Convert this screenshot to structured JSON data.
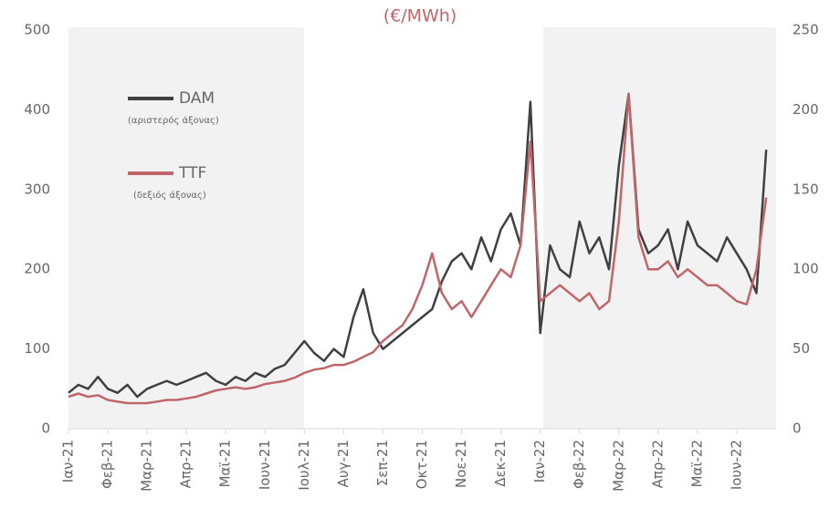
{
  "chart_data": {
    "type": "line",
    "title": "(€/MWh)",
    "categories": [
      "Ιαν-21",
      null,
      null,
      null,
      "Φεβ-21",
      null,
      null,
      null,
      "Μαρ-21",
      null,
      null,
      null,
      "Απρ-21",
      null,
      null,
      null,
      "Μαϊ-21",
      null,
      null,
      null,
      "Ιουν-21",
      null,
      null,
      null,
      "Ιουλ-21",
      null,
      null,
      null,
      "Αυγ-21",
      null,
      null,
      null,
      "Σεπ-21",
      null,
      null,
      null,
      "Οκτ-21",
      null,
      null,
      null,
      "Νοε-21",
      null,
      null,
      null,
      "Δεκ-21",
      null,
      null,
      null,
      "Ιαν-22",
      null,
      null,
      null,
      "Φεβ-22",
      null,
      null,
      null,
      "Μαρ-22",
      null,
      null,
      null,
      "Απρ-22",
      null,
      null,
      null,
      "Μαϊ-22",
      null,
      null,
      null,
      "Ιουν-22",
      null,
      null,
      null
    ],
    "series": [
      {
        "name": "DAM",
        "color": "#404040",
        "values": [
          45,
          55,
          50,
          65,
          50,
          45,
          55,
          40,
          50,
          55,
          60,
          55,
          60,
          65,
          70,
          60,
          55,
          65,
          60,
          70,
          65,
          75,
          80,
          95,
          110,
          95,
          85,
          100,
          90,
          140,
          175,
          120,
          100,
          110,
          120,
          130,
          140,
          150,
          185,
          210,
          220,
          200,
          240,
          210,
          250,
          270,
          230,
          410,
          120,
          230,
          200,
          190,
          260,
          220,
          240,
          200,
          330,
          420,
          250,
          220,
          230,
          250,
          200,
          260,
          230,
          220,
          210,
          240,
          220,
          200,
          170,
          350
        ]
      },
      {
        "name": "TTF",
        "color": "#c0666a",
        "axis": "y2",
        "values": [
          20,
          22,
          20,
          21,
          18,
          17,
          16,
          16,
          16,
          17,
          18,
          18,
          19,
          20,
          22,
          24,
          25,
          26,
          25,
          26,
          28,
          29,
          30,
          32,
          35,
          37,
          38,
          40,
          40,
          42,
          45,
          48,
          55,
          60,
          65,
          75,
          90,
          110,
          85,
          75,
          80,
          70,
          80,
          90,
          100,
          95,
          115,
          180,
          80,
          85,
          90,
          85,
          80,
          85,
          75,
          80,
          130,
          210,
          120,
          100,
          100,
          105,
          95,
          100,
          95,
          90,
          90,
          85,
          80,
          78,
          100,
          145
        ]
      }
    ],
    "legend_notes": [
      "(αριστερός άξονας)",
      "(δεξιός άξονας)"
    ],
    "ylim": [
      0,
      500
    ],
    "yticks": [
      0,
      100,
      200,
      300,
      400,
      500
    ],
    "y2lim": [
      0,
      250
    ],
    "y2ticks": [
      0,
      50,
      100,
      150,
      200,
      250
    ]
  }
}
